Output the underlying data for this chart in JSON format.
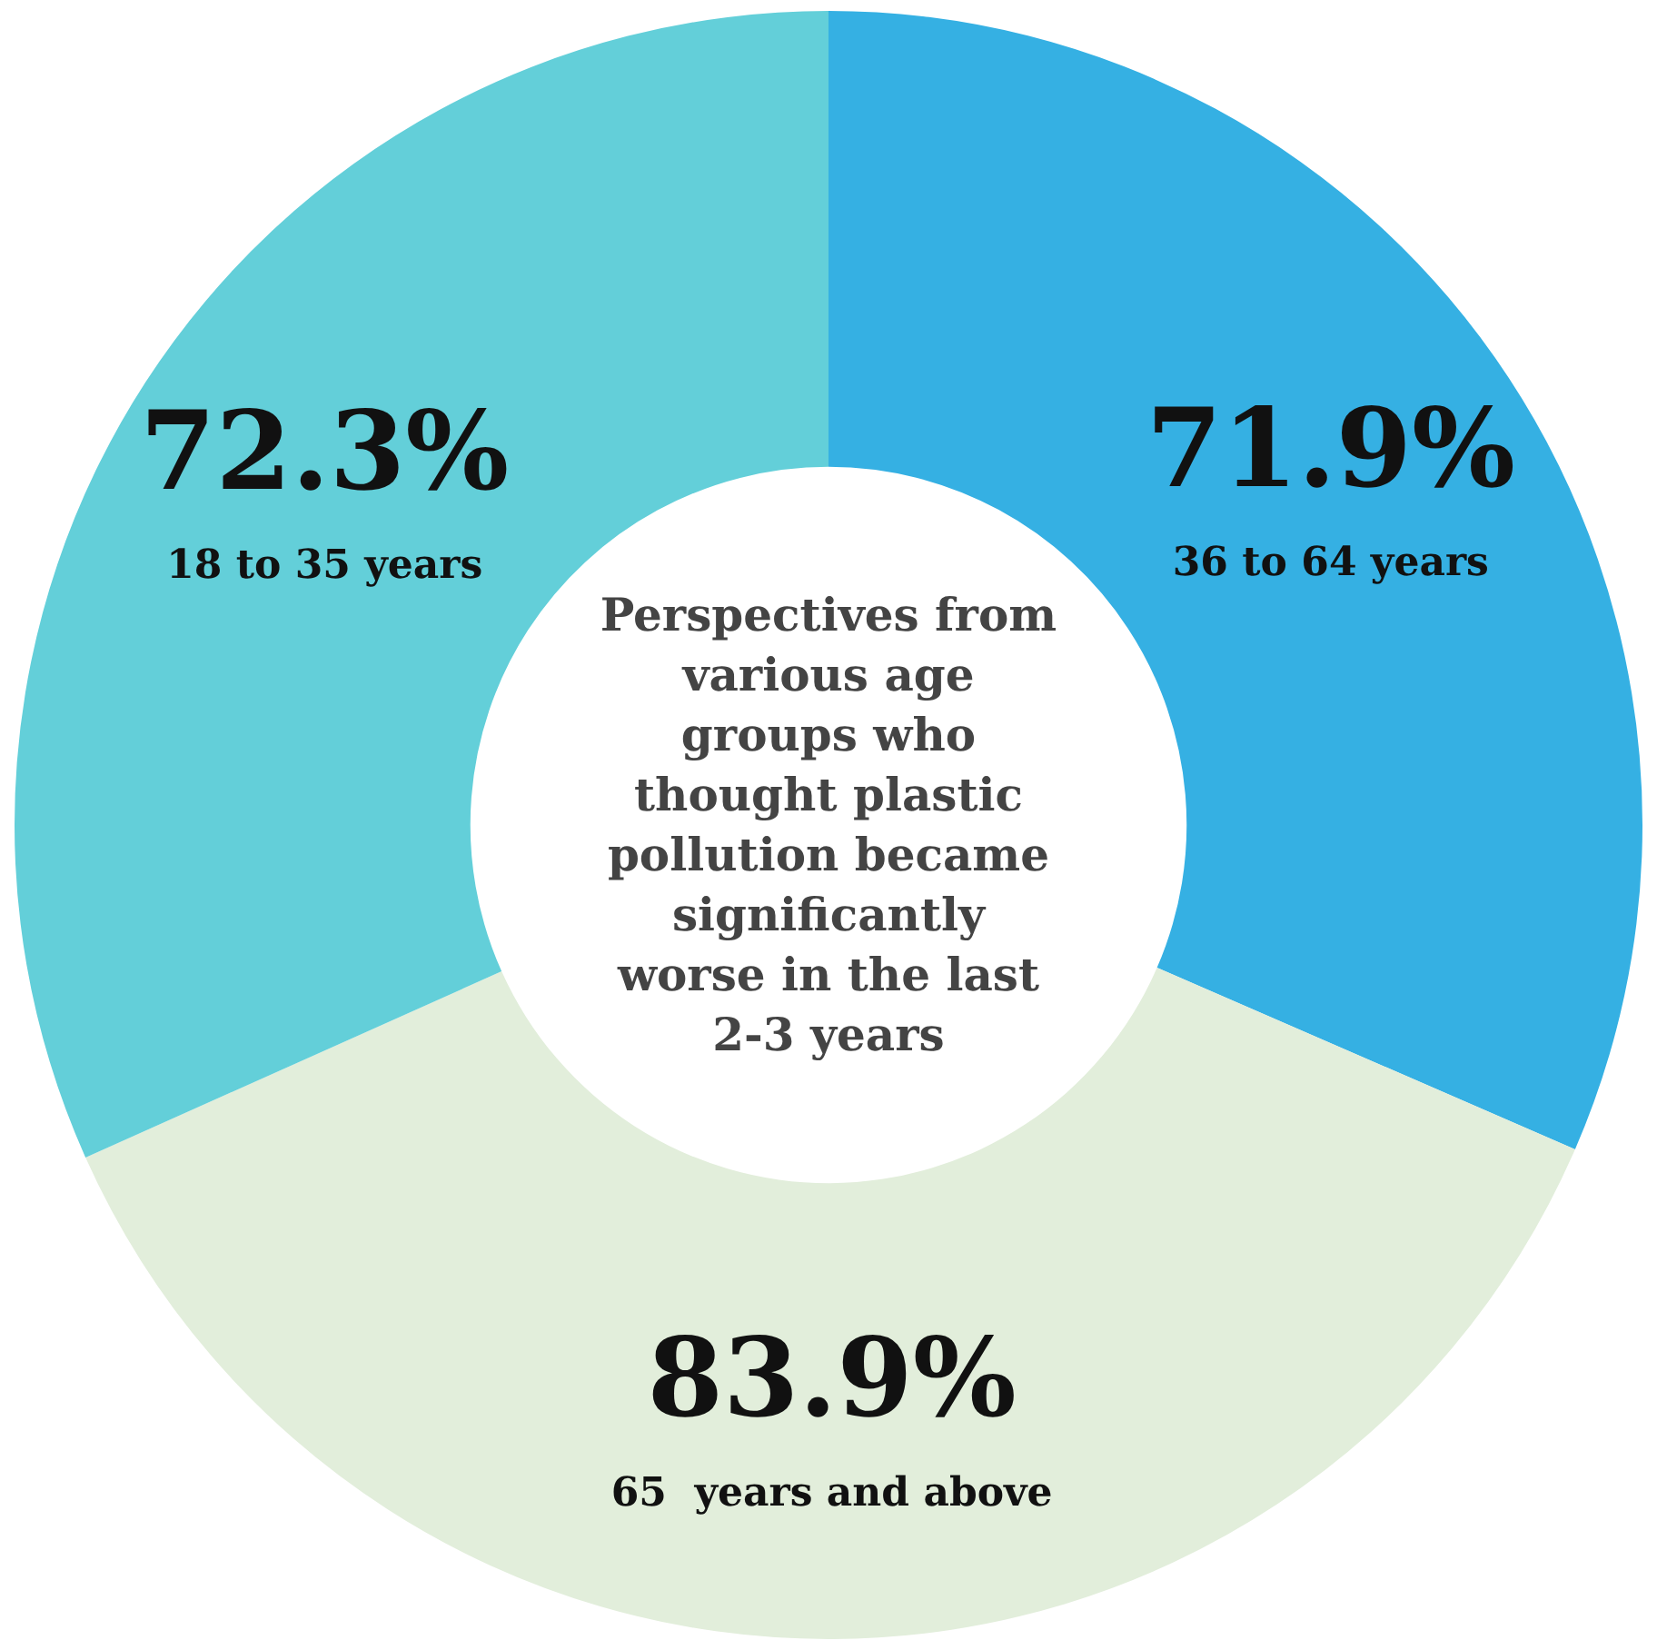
{
  "chart_data": {
    "type": "donut",
    "title": "Perspectives from various age groups who thought plastic pollution became significantly worse in the last 2-3 years",
    "categories": [
      "36 to 64 years",
      "65  years and above",
      "18 to 35 years"
    ],
    "values": [
      71.9,
      83.9,
      72.3
    ],
    "value_labels": [
      "71.9%",
      "83.9%",
      "72.3%"
    ],
    "colors": [
      "#35b0e3",
      "#e2eedb",
      "#63cfd9"
    ]
  }
}
